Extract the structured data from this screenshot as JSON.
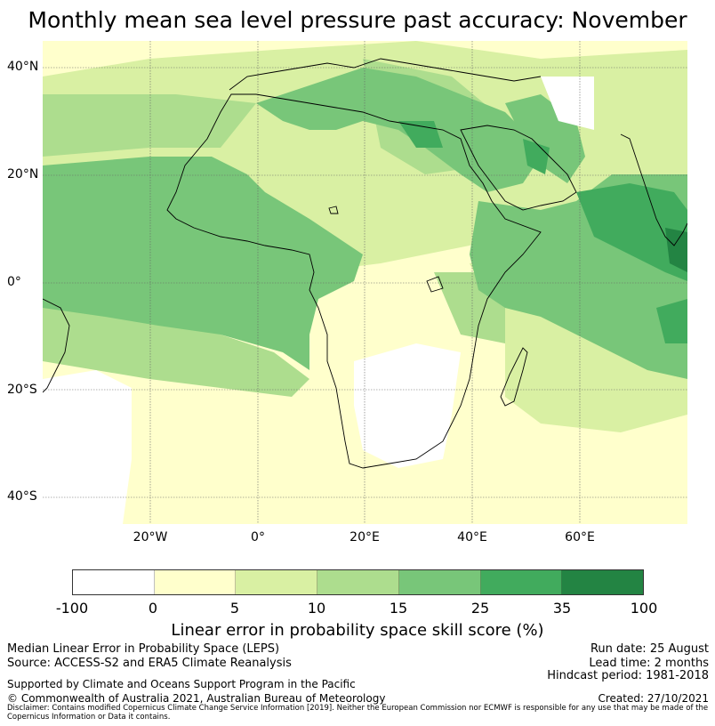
{
  "title": "Monthly mean sea level pressure past accuracy: November",
  "map": {
    "lat_labels": [
      "40°N",
      "20°N",
      "0°",
      "20°S",
      "40°S"
    ],
    "lon_labels": [
      "20°W",
      "0°",
      "20°E",
      "40°E",
      "60°E"
    ],
    "extent": {
      "lon_min": -40,
      "lon_max": 80,
      "lat_min": -45,
      "lat_max": 45
    }
  },
  "legend": {
    "ticks": [
      "-100",
      "0",
      "5",
      "10",
      "15",
      "25",
      "35",
      "100"
    ],
    "colors": [
      "#ffffff",
      "#ffffcc",
      "#d9f0a3",
      "#addd8e",
      "#78c679",
      "#41ab5d",
      "#238443"
    ],
    "label": "Linear error in probability space skill score (%)"
  },
  "footer": {
    "left1": "Median Linear Error in Probability Space (LEPS)",
    "left2": "Source: ACCESS-S2 and ERA5 Climate Reanalysis",
    "right1": "Run date: 25 August",
    "right2": "Lead time: 2 months",
    "right3": "Hindcast period: 1981-2018",
    "support": "Supported by Climate and Oceans Support Program in the Pacific",
    "copyright": "© Commonwealth of Australia 2021, Australian Bureau of Meteorology",
    "created": "Created: 27/10/2021",
    "disclaimer": "Disclaimer: Contains modified Copernicus Climate Change Service Information [2019]. Neither the European Commission nor ECMWF is responsible for any use that may be made of the Copernicus Information or Data it contains."
  }
}
